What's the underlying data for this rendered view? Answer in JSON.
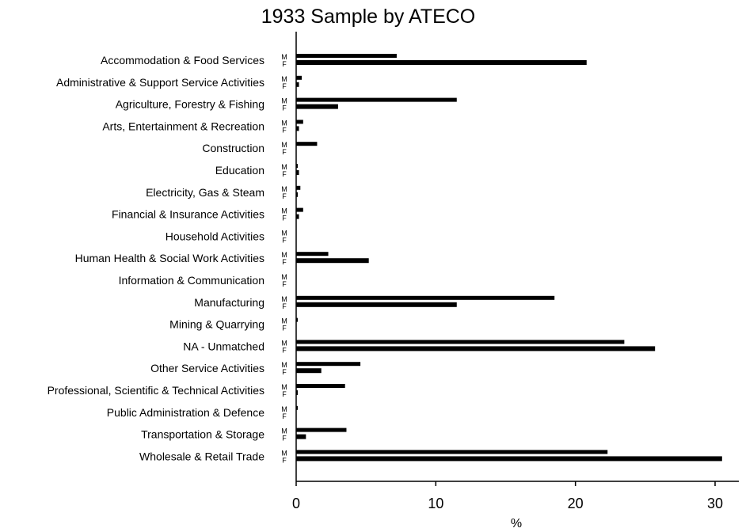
{
  "chart_data": {
    "type": "bar",
    "orientation": "horizontal",
    "title": "1933 Sample by ATECO",
    "xlabel": "%",
    "xlim": [
      0,
      31
    ],
    "xticks": [
      0,
      10,
      20,
      30
    ],
    "sub_labels": [
      "M",
      "F"
    ],
    "categories": [
      "Accommodation & Food Services",
      "Administrative & Support Service Activities",
      "Agriculture, Forestry & Fishing",
      "Arts, Entertainment & Recreation",
      "Construction",
      "Education",
      "Electricity, Gas & Steam",
      "Financial & Insurance Activities",
      "Household Activities",
      "Human Health & Social Work Activities",
      "Information & Communication",
      "Manufacturing",
      "Mining & Quarrying",
      "NA - Unmatched",
      "Other Service Activities",
      "Professional, Scientific & Technical Activities",
      "Public Administration & Defence",
      "Transportation & Storage",
      "Wholesale & Retail Trade"
    ],
    "series": [
      {
        "name": "M",
        "values": [
          7.2,
          0.4,
          11.5,
          0.5,
          1.5,
          0.1,
          0.3,
          0.5,
          0.0,
          2.3,
          0.0,
          18.5,
          0.1,
          23.5,
          4.6,
          3.5,
          0.1,
          3.6,
          22.3
        ]
      },
      {
        "name": "F",
        "values": [
          20.8,
          0.2,
          3.0,
          0.2,
          0.0,
          0.2,
          0.1,
          0.2,
          0.0,
          5.2,
          0.0,
          11.5,
          0.0,
          25.7,
          1.8,
          0.1,
          0.0,
          0.7,
          30.5
        ]
      }
    ],
    "grid": false,
    "legend": "none"
  }
}
